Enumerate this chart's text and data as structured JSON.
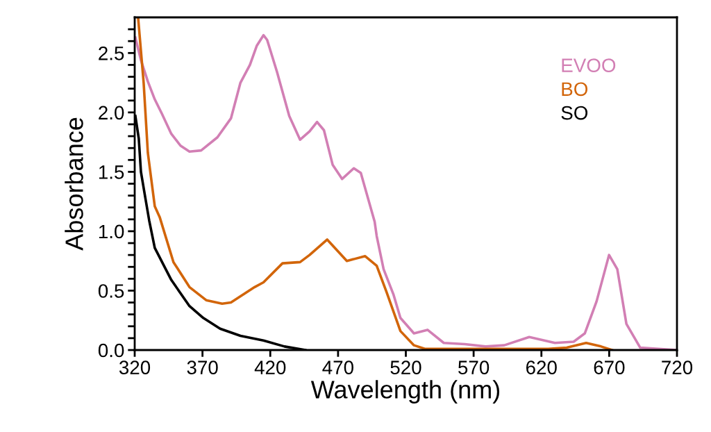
{
  "chart_data": {
    "type": "line",
    "xlabel": "Wavelength (nm)",
    "ylabel": "Absorbance",
    "xlim": [
      320,
      720
    ],
    "xticks": [
      320,
      370,
      420,
      470,
      520,
      570,
      620,
      670,
      720
    ],
    "ylim": [
      0,
      2.8
    ],
    "yticks": [
      {
        "value": 0,
        "label": "0.0"
      },
      {
        "value": 0.1,
        "label": null
      },
      {
        "value": 0.2,
        "label": null
      },
      {
        "value": 0.3,
        "label": null
      },
      {
        "value": 0.4,
        "label": null
      },
      {
        "value": 0.5,
        "label": "0.5"
      },
      {
        "value": 0.6,
        "label": null
      },
      {
        "value": 0.7,
        "label": null
      },
      {
        "value": 0.8,
        "label": null
      },
      {
        "value": 0.9,
        "label": null
      },
      {
        "value": 1.0,
        "label": "1.0"
      },
      {
        "value": 1.1,
        "label": null
      },
      {
        "value": 1.2,
        "label": null
      },
      {
        "value": 1.3,
        "label": null
      },
      {
        "value": 1.4,
        "label": null
      },
      {
        "value": 1.5,
        "label": "1.5"
      },
      {
        "value": 1.6,
        "label": null
      },
      {
        "value": 1.7,
        "label": null
      },
      {
        "value": 1.8,
        "label": null
      },
      {
        "value": 1.9,
        "label": null
      },
      {
        "value": 2.0,
        "label": "2.0"
      },
      {
        "value": 2.1,
        "label": null
      },
      {
        "value": 2.2,
        "label": null
      },
      {
        "value": 2.3,
        "label": null
      },
      {
        "value": 2.4,
        "label": null
      },
      {
        "value": 2.5,
        "label": "2.5"
      },
      {
        "value": 2.6,
        "label": null
      },
      {
        "value": 2.7,
        "label": null
      }
    ],
    "grid": false,
    "legend": "top right",
    "marker": "none",
    "line_style": "solid",
    "series": [
      {
        "name": "EVOO",
        "color": "#d27fb4",
        "x": [
          320.5,
          324.6,
          329.7,
          334.8,
          340,
          347,
          353.8,
          360.4,
          369,
          381,
          391,
          398,
          405,
          410,
          415,
          417.7,
          425,
          434,
          442,
          449,
          454.5,
          459.6,
          466,
          473,
          481.6,
          486.8,
          497,
          498.5,
          503.6,
          510.8,
          516,
          526,
          536,
          548,
          563.5,
          578.8,
          592.6,
          611,
          630,
          643.8,
          652,
          660.7,
          669.9,
          676,
          682.7,
          692.9,
          720
        ],
        "values": [
          2.63,
          2.44,
          2.26,
          2.11,
          1.99,
          1.82,
          1.72,
          1.67,
          1.68,
          1.79,
          1.95,
          2.25,
          2.4,
          2.56,
          2.65,
          2.61,
          2.34,
          1.97,
          1.77,
          1.84,
          1.92,
          1.85,
          1.56,
          1.44,
          1.53,
          1.49,
          1.08,
          0.96,
          0.68,
          0.47,
          0.27,
          0.14,
          0.17,
          0.06,
          0.05,
          0.03,
          0.04,
          0.11,
          0.06,
          0.07,
          0.14,
          0.41,
          0.8,
          0.68,
          0.22,
          0.02,
          0
        ]
      },
      {
        "name": "BO",
        "color": "#d2650a",
        "x": [
          322.5,
          326.6,
          329.7,
          334.8,
          338.4,
          348.6,
          360.4,
          372.7,
          384.5,
          391,
          408.5,
          415,
          429,
          442,
          449,
          462,
          476.5,
          490,
          498.5,
          505.7,
          516,
          526,
          534,
          625,
          638.7,
          653,
          664,
          672
        ],
        "values": [
          2.8,
          2.25,
          1.66,
          1.21,
          1.12,
          0.74,
          0.53,
          0.42,
          0.39,
          0.4,
          0.53,
          0.57,
          0.73,
          0.74,
          0.8,
          0.93,
          0.75,
          0.79,
          0.71,
          0.49,
          0.16,
          0.04,
          0.01,
          0.01,
          0.02,
          0.06,
          0.03,
          0
        ]
      },
      {
        "name": "SO",
        "color": "#000000",
        "x": [
          320.5,
          323,
          324.6,
          328,
          330.7,
          334.8,
          347,
          360.4,
          370.6,
          383,
          398,
          415,
          430.5,
          445.8
        ],
        "values": [
          1.97,
          1.78,
          1.5,
          1.27,
          1.09,
          0.86,
          0.59,
          0.37,
          0.27,
          0.18,
          0.12,
          0.08,
          0.03,
          0
        ]
      }
    ]
  }
}
